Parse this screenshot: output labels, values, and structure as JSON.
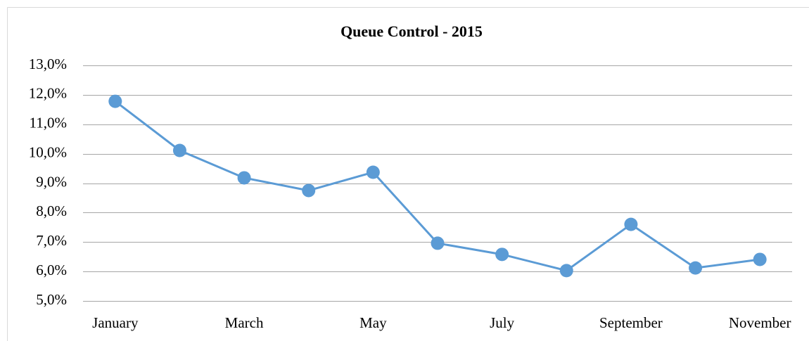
{
  "chart_data": {
    "type": "line",
    "title": "Queue Control - 2015",
    "categories": [
      "January",
      null,
      "March",
      null,
      "May",
      null,
      "July",
      null,
      "September",
      null,
      "November"
    ],
    "values": [
      11.78,
      10.11,
      9.18,
      8.75,
      9.37,
      6.96,
      6.58,
      6.03,
      7.6,
      6.12,
      6.41
    ],
    "color": "#5b9bd5",
    "ylim": [
      5,
      13
    ],
    "yticks": [
      {
        "value": 5,
        "label": "5,0%"
      },
      {
        "value": 6,
        "label": "6,0%"
      },
      {
        "value": 7,
        "label": "7,0%"
      },
      {
        "value": 8,
        "label": "8,0%"
      },
      {
        "value": 9,
        "label": "9,0%"
      },
      {
        "value": 10,
        "label": "10,0%"
      },
      {
        "value": 11,
        "label": "11,0%"
      },
      {
        "value": 12,
        "label": "12,0%"
      },
      {
        "value": 13,
        "label": "13,0%"
      }
    ],
    "grid": true
  }
}
